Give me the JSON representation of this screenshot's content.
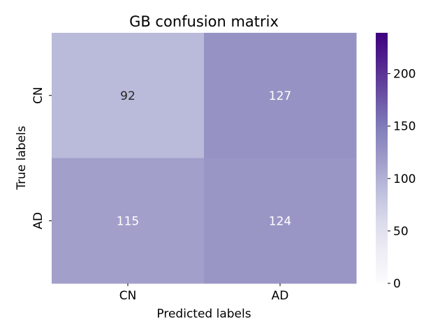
{
  "chart_data": {
    "type": "heatmap",
    "title": "GB confusion matrix",
    "xlabel": "Predicted labels",
    "ylabel": "True labels",
    "x_categories": [
      "CN",
      "AD"
    ],
    "y_categories": [
      "CN",
      "AD"
    ],
    "values": [
      [
        92,
        127
      ],
      [
        115,
        124
      ]
    ],
    "colormap": "Purples",
    "colorbar": {
      "range": [
        0,
        239
      ],
      "ticks": [
        0,
        50,
        100,
        150,
        200
      ],
      "tick_labels": [
        "0",
        "50",
        "100",
        "150",
        "200"
      ]
    },
    "grid": false
  }
}
